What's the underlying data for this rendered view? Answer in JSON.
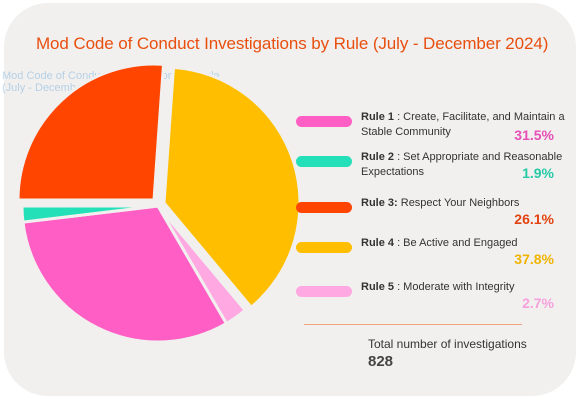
{
  "title": "Mod Code of Conduct Investigations by Rule (July - December 2024)",
  "total": {
    "label": "Total number of investigations",
    "value": "828"
  },
  "chart_data": {
    "type": "pie",
    "title": "Mod Code of Conduct Investigations by Rule (July - December 2024)",
    "slices": [
      {
        "id": "rule1",
        "bold": "Rule 1",
        "text": " : Create, Facilitate, and Maintain a Stable Community",
        "value": 31.5,
        "label": "31.5%",
        "color": "#ff5fc4",
        "pct_color": "#e64fb5"
      },
      {
        "id": "rule2",
        "bold": "Rule 2",
        "text": " : Set Appropriate and Reasonable Expectations",
        "value": 1.9,
        "label": "1.9%",
        "color": "#24e0b8",
        "pct_color": "#27c9a6"
      },
      {
        "id": "rule3",
        "bold": "Rule 3:",
        "text": " Respect Your Neighbors",
        "value": 26.1,
        "label": "26.1%",
        "color": "#ff4500",
        "pct_color": "#e2420d"
      },
      {
        "id": "rule4",
        "bold": "Rule 4",
        "text": " : Be Active and Engaged",
        "value": 37.8,
        "label": "37.8%",
        "color": "#ffbf00",
        "pct_color": "#f0b400"
      },
      {
        "id": "rule5",
        "bold": "Rule 5",
        "text": " : Moderate with Integrity",
        "value": 2.7,
        "label": "2.7%",
        "color": "#ffa8e2",
        "pct_color": "#f7a0dc"
      }
    ]
  }
}
